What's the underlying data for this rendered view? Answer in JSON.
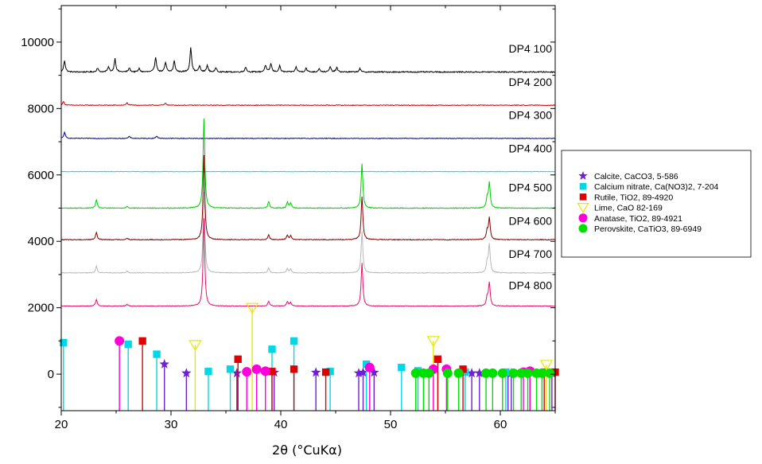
{
  "chart_data": {
    "type": "line",
    "title": "",
    "xlabel": "2θ (°CuKα)",
    "ylabel": "",
    "xlim": [
      20,
      65
    ],
    "ylim": [
      -1100,
      11100
    ],
    "xticks": [
      20,
      30,
      40,
      50,
      60
    ],
    "yticks": [
      0,
      2000,
      4000,
      6000,
      8000,
      10000
    ],
    "x_minor_step": 5,
    "y_minor_step": 1000,
    "grid": false,
    "legend_position": "right-outside",
    "series": [
      {
        "name": "DP4 100",
        "color": "#000000",
        "baseline": 9100,
        "noise": 18,
        "label_y": 9680,
        "peaks": [
          [
            20.3,
            350
          ],
          [
            23.3,
            120
          ],
          [
            24.3,
            150
          ],
          [
            24.9,
            400
          ],
          [
            26.2,
            120
          ],
          [
            27.1,
            100
          ],
          [
            28.6,
            450
          ],
          [
            29.5,
            280
          ],
          [
            30.3,
            330
          ],
          [
            31.8,
            750
          ],
          [
            32.6,
            180
          ],
          [
            33.3,
            200
          ],
          [
            34.1,
            120
          ],
          [
            36.8,
            150
          ],
          [
            38.6,
            200
          ],
          [
            39.1,
            250
          ],
          [
            39.9,
            180
          ],
          [
            41.4,
            150
          ],
          [
            42.3,
            120
          ],
          [
            43.5,
            110
          ],
          [
            44.5,
            150
          ],
          [
            45.1,
            130
          ],
          [
            47.2,
            100
          ]
        ]
      },
      {
        "name": "DP4 200",
        "color": "#d00000",
        "baseline": 8100,
        "noise": 10,
        "label_y": 8680,
        "peaks": [
          [
            20.2,
            110
          ],
          [
            26.0,
            70
          ],
          [
            29.5,
            60
          ]
        ]
      },
      {
        "name": "DP4 300",
        "color": "#000099",
        "baseline": 7100,
        "noise": 10,
        "label_y": 7680,
        "peaks": [
          [
            20.3,
            180
          ],
          [
            26.2,
            60
          ],
          [
            28.7,
            70
          ]
        ]
      },
      {
        "name": "DP4 400",
        "color": "#00d8e8",
        "baseline": 6100,
        "noise": 8,
        "label_y": 6680,
        "peaks": []
      },
      {
        "name": "DP4 500",
        "color": "#00cc00",
        "baseline": 5000,
        "noise": 12,
        "label_y": 5500,
        "peaks": [
          [
            23.2,
            250
          ],
          [
            26.0,
            60
          ],
          [
            33.0,
            2700
          ],
          [
            38.9,
            200
          ],
          [
            40.6,
            180
          ],
          [
            40.9,
            150
          ],
          [
            47.4,
            1330
          ],
          [
            59.0,
            750
          ],
          [
            58.8,
            300
          ]
        ]
      },
      {
        "name": "DP4 600",
        "color": "#800000",
        "baseline": 4050,
        "noise": 12,
        "label_y": 4500,
        "peaks": [
          [
            23.2,
            220
          ],
          [
            26.0,
            50
          ],
          [
            33.0,
            2550
          ],
          [
            38.9,
            150
          ],
          [
            40.6,
            130
          ],
          [
            40.9,
            120
          ],
          [
            47.4,
            1300
          ],
          [
            59.0,
            650
          ],
          [
            58.8,
            250
          ]
        ]
      },
      {
        "name": "DP4 700",
        "color": "#b8b8b8",
        "baseline": 3050,
        "noise": 10,
        "label_y": 3500,
        "peaks": [
          [
            23.2,
            200
          ],
          [
            26.0,
            50
          ],
          [
            33.0,
            2450
          ],
          [
            38.9,
            150
          ],
          [
            40.6,
            130
          ],
          [
            40.9,
            110
          ],
          [
            47.4,
            1250
          ],
          [
            59.0,
            850
          ],
          [
            58.8,
            300
          ]
        ]
      },
      {
        "name": "DP4 800",
        "color": "#e0106a",
        "baseline": 2050,
        "noise": 10,
        "label_y": 2550,
        "peaks": [
          [
            23.2,
            200
          ],
          [
            26.0,
            50
          ],
          [
            33.0,
            2650
          ],
          [
            38.9,
            150
          ],
          [
            40.6,
            130
          ],
          [
            40.9,
            110
          ],
          [
            47.4,
            1300
          ],
          [
            59.0,
            700
          ],
          [
            58.8,
            250
          ]
        ]
      }
    ],
    "reference_patterns": [
      {
        "name": "Calcite, CaCO3, 5-586",
        "marker": "star",
        "color": "#7020d0",
        "lines": [
          [
            29.4,
            300
          ],
          [
            31.4,
            30
          ],
          [
            36.0,
            30
          ],
          [
            39.4,
            50
          ],
          [
            43.2,
            50
          ],
          [
            47.1,
            30
          ],
          [
            47.5,
            50
          ],
          [
            48.5,
            50
          ],
          [
            57.4,
            30
          ],
          [
            58.1,
            30
          ],
          [
            60.7,
            30
          ],
          [
            61.0,
            30
          ],
          [
            64.7,
            30
          ]
        ]
      },
      {
        "name": "Calcium nitrate, Ca(NO3)2, 7-204",
        "marker": "square",
        "color": "#00d8e8",
        "lines": [
          [
            20.2,
            950
          ],
          [
            26.1,
            900
          ],
          [
            28.7,
            600
          ],
          [
            33.4,
            80
          ],
          [
            35.4,
            150
          ],
          [
            39.2,
            750
          ],
          [
            41.2,
            1000
          ],
          [
            44.5,
            80
          ],
          [
            47.8,
            300
          ],
          [
            51.0,
            200
          ],
          [
            52.5,
            100
          ],
          [
            56.8,
            60
          ],
          [
            60.5,
            60
          ]
        ]
      },
      {
        "name": "Rutile, TiO2, 89-4920",
        "marker": "square",
        "color": "#e00000",
        "lines": [
          [
            27.4,
            1000
          ],
          [
            36.1,
            450
          ],
          [
            39.2,
            80
          ],
          [
            41.2,
            150
          ],
          [
            44.1,
            60
          ],
          [
            54.3,
            450
          ],
          [
            56.6,
            150
          ],
          [
            62.7,
            80
          ],
          [
            64.0,
            60
          ],
          [
            65.0,
            60
          ]
        ]
      },
      {
        "name": "Lime, CaO 82-169",
        "marker": "triangle-down",
        "color": "#e8e800",
        "lines": [
          [
            32.2,
            880
          ],
          [
            37.4,
            2000
          ],
          [
            53.9,
            1000
          ],
          [
            64.2,
            280
          ]
        ]
      },
      {
        "name": "Anatase, TiO2, 89-4921",
        "marker": "circle",
        "color": "#ff00dd",
        "lines": [
          [
            25.3,
            1000
          ],
          [
            36.9,
            70
          ],
          [
            37.8,
            150
          ],
          [
            38.6,
            90
          ],
          [
            48.1,
            200
          ],
          [
            53.9,
            150
          ],
          [
            55.1,
            150
          ],
          [
            62.1,
            60
          ],
          [
            62.7,
            90
          ]
        ]
      },
      {
        "name": "Perovskite, CaTiO3, 89-6949",
        "marker": "circle",
        "color": "#00e000",
        "lines": [
          [
            52.3,
            30
          ],
          [
            53.0,
            30
          ],
          [
            53.5,
            30
          ],
          [
            55.2,
            30
          ],
          [
            56.2,
            30
          ],
          [
            58.7,
            30
          ],
          [
            59.3,
            30
          ],
          [
            60.2,
            30
          ],
          [
            61.2,
            30
          ],
          [
            61.9,
            30
          ],
          [
            62.5,
            30
          ],
          [
            63.3,
            30
          ],
          [
            63.8,
            30
          ],
          [
            64.5,
            30
          ]
        ]
      }
    ]
  }
}
